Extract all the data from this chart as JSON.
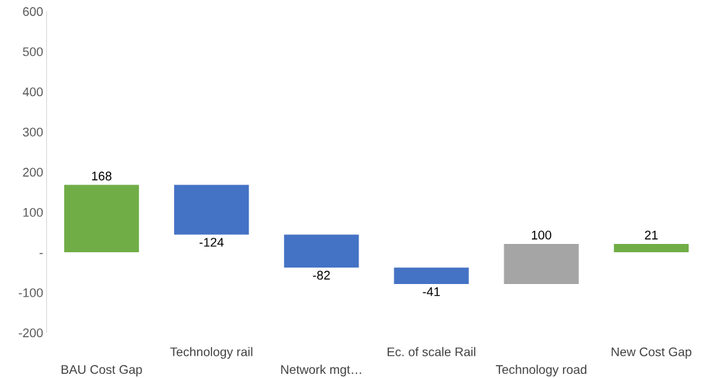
{
  "chart_data": {
    "type": "bar",
    "categories": [
      "BAU Cost Gap",
      "Technology rail",
      "Network mgt…",
      "Ec. of scale Rail",
      "Technology road",
      "New Cost Gap"
    ],
    "values": [
      168,
      -124,
      -82,
      -41,
      100,
      21
    ],
    "base": [
      0,
      168,
      44,
      -38,
      -79,
      0
    ],
    "colors": [
      "#70ad47",
      "#4472c4",
      "#4472c4",
      "#4472c4",
      "#a5a5a5",
      "#70ad47"
    ],
    "ylim": [
      -200,
      600
    ],
    "yticks": [
      {
        "value": -200,
        "label": "-200"
      },
      {
        "value": -100,
        "label": "-100"
      },
      {
        "value": 0,
        "label": "-"
      },
      100,
      200,
      300,
      400,
      500,
      600
    ],
    "data_labels": true,
    "grid": false,
    "legend": false
  }
}
